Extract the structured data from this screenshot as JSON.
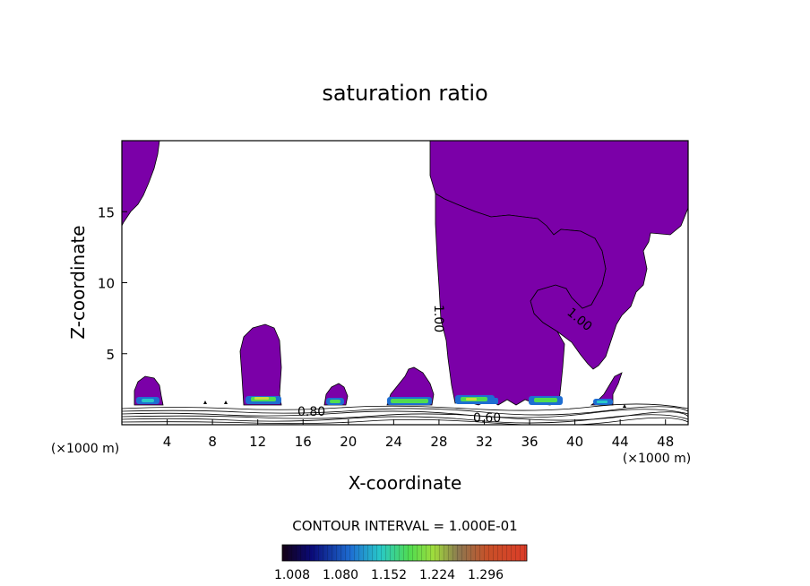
{
  "chart_data": {
    "type": "contour",
    "title": "saturation ratio",
    "xlabel": "X-coordinate",
    "ylabel": "Z-coordinate",
    "x_unit": "(×1000 m)",
    "z_unit": "(×1000 m)",
    "xlim": [
      0,
      50
    ],
    "ylim": [
      0,
      20
    ],
    "x_ticks": [
      4,
      8,
      12,
      16,
      20,
      24,
      28,
      32,
      36,
      40,
      44,
      48
    ],
    "y_ticks": [
      5,
      10,
      15
    ],
    "contour_labels": [
      "1.00",
      "1.00",
      "0.80",
      "0.60"
    ],
    "contour_interval_text": "CONTOUR INTERVAL = 1.000E-01",
    "colorbar_ticks": [
      "1.008",
      "1.080",
      "1.152",
      "1.224",
      "1.296"
    ],
    "fill_color": "#7b00a8",
    "colors": {
      "low": "#140050",
      "blue": "#1e6ed2",
      "cyan": "#28c8c8",
      "green": "#50dc50",
      "yellow": "#c8dc3c",
      "red": "#dc3c28"
    }
  }
}
